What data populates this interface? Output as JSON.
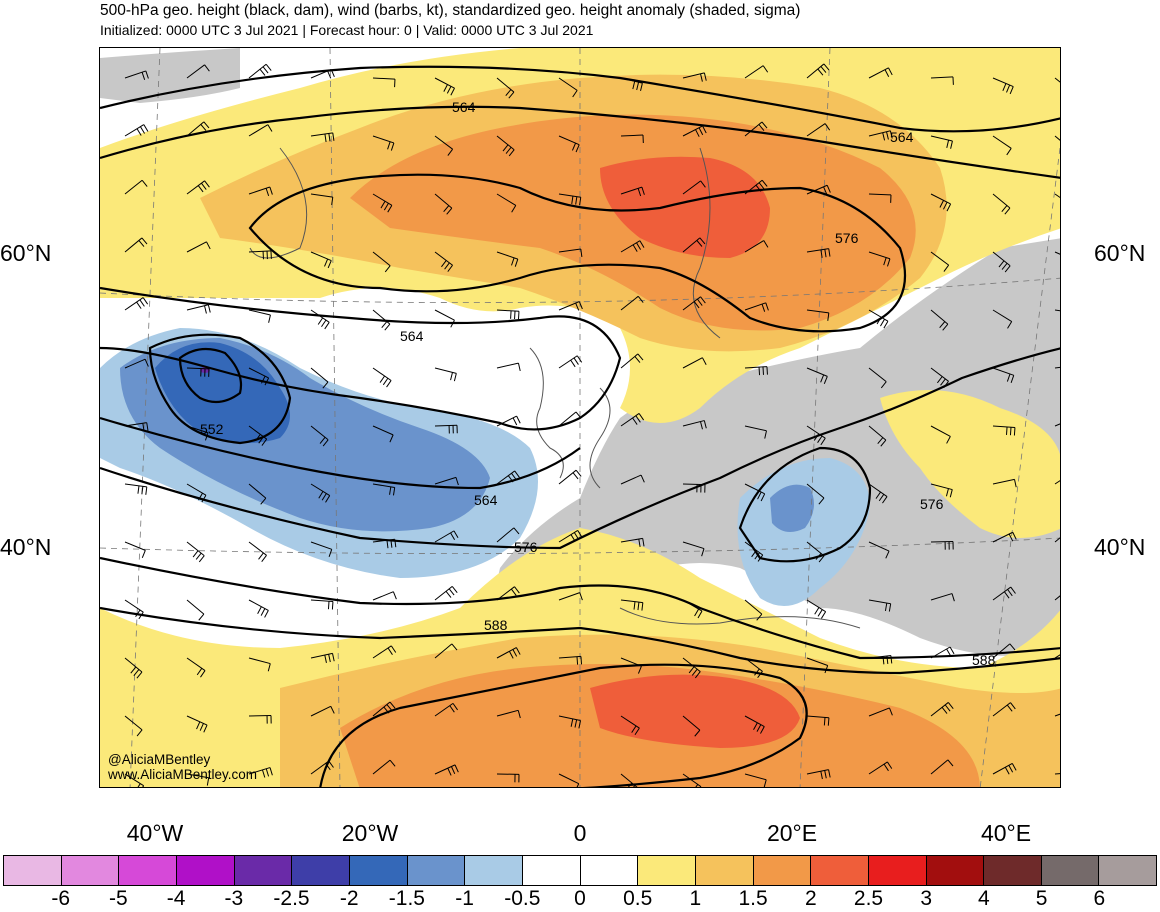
{
  "header": {
    "title": "500-hPa geo. height (black, dam), wind (barbs, kt), standardized geo. height anomaly (shaded, sigma)",
    "subtitle": "Initialized: 0000 UTC 3 Jul 2021 | Forecast hour: 0 | Valid: 0000 UTC 3 Jul 2021"
  },
  "map": {
    "lat_labels": [
      "60°N",
      "40°N"
    ],
    "lon_labels": [
      "40°W",
      "20°W",
      "0",
      "20°E",
      "40°E"
    ],
    "contour_labels": [
      "564",
      "564",
      "576",
      "564",
      "552",
      "564",
      "576",
      "576",
      "588",
      "588"
    ],
    "credit_handle": "@AliciaMBentley",
    "credit_url": "www.AliciaMBentley.com"
  },
  "colorbar": {
    "colors": [
      "#e9b8e4",
      "#e288df",
      "#d649d8",
      "#b010c8",
      "#6a2aa8",
      "#3e3ea8",
      "#3468b8",
      "#6a93cc",
      "#a9cbe6",
      "#ffffff",
      "#ffffff",
      "#fbe97a",
      "#f5c25c",
      "#f29948",
      "#ef5e3a",
      "#e81e1e",
      "#a20e0e",
      "#6e2a2a",
      "#756a6a",
      "#a69c9c"
    ],
    "labels": [
      "-6",
      "-5",
      "-4",
      "-3",
      "-2.5",
      "-2",
      "-1.5",
      "-1",
      "-0.5",
      "0",
      "0.5",
      "1",
      "1.5",
      "2",
      "2.5",
      "3",
      "4",
      "5",
      "6"
    ]
  },
  "palette": {
    "anom_pos1": "#fbe97a",
    "anom_pos2": "#f5c25c",
    "anom_pos3": "#f29948",
    "anom_pos4": "#ef5e3a",
    "anom_neg1": "#a9cbe6",
    "anom_neg2": "#6a93cc",
    "anom_neg3": "#3468b8",
    "land_gray": "#c8c8c8"
  }
}
